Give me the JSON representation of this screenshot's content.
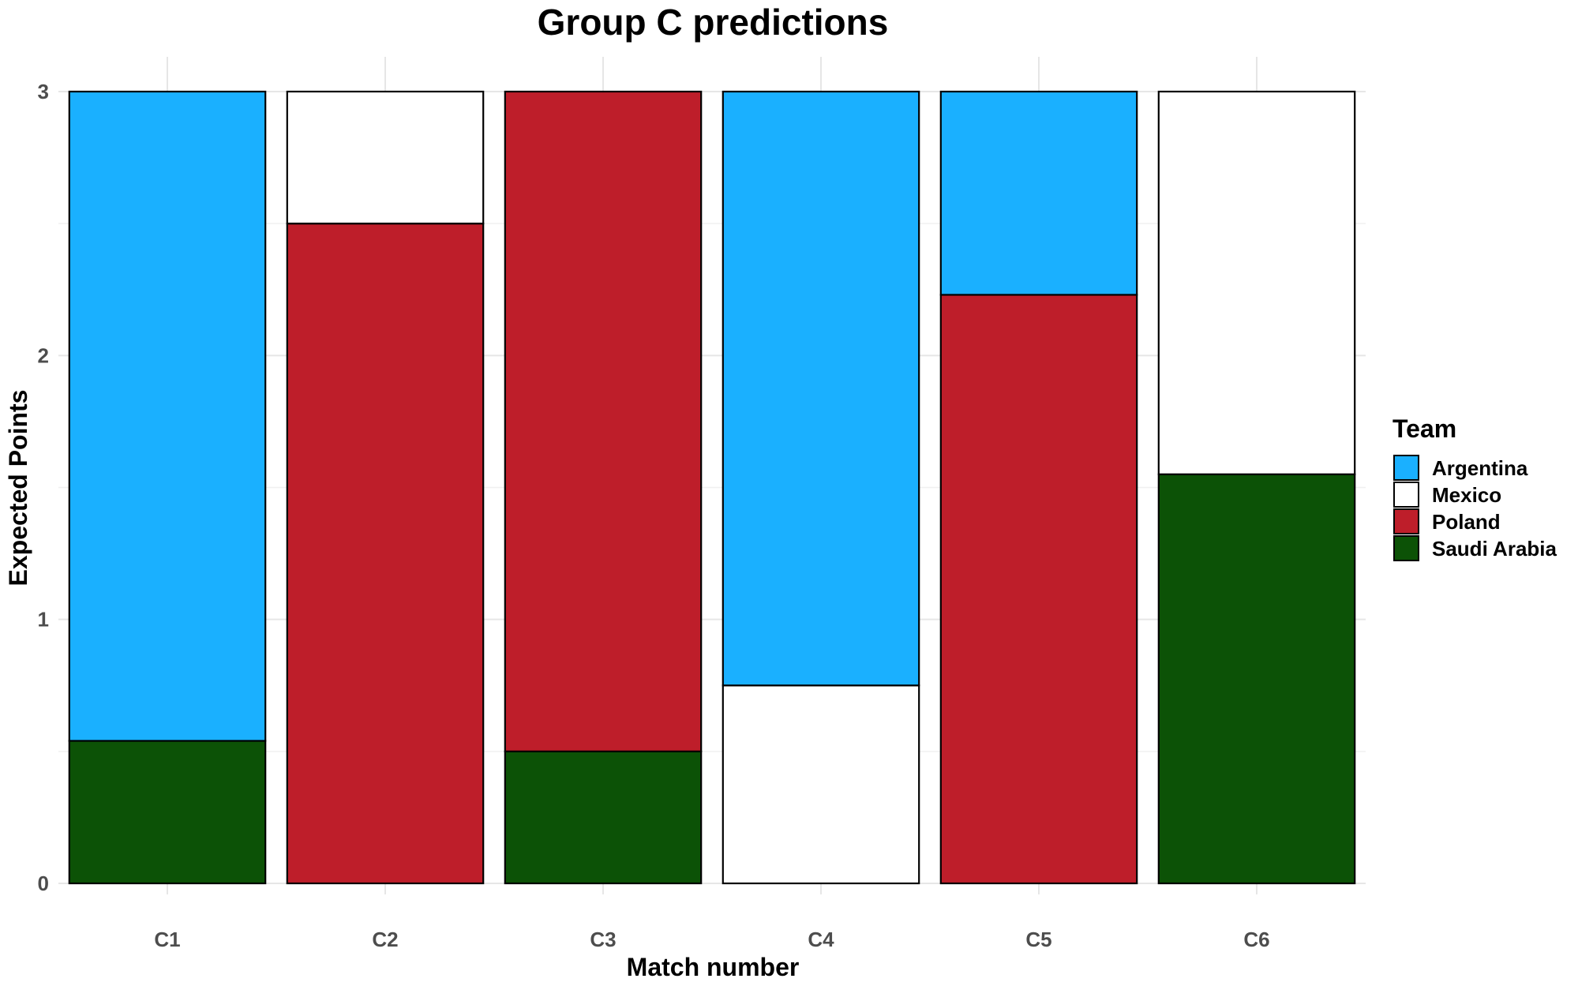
{
  "chart_data": {
    "type": "bar",
    "stacked": true,
    "title": "Group C predictions",
    "xlabel": "Match number",
    "ylabel": "Expected Points",
    "categories": [
      "C1",
      "C2",
      "C3",
      "C4",
      "C5",
      "C6"
    ],
    "ylim": [
      0,
      3
    ],
    "yticks": [
      "0",
      "1",
      "2",
      "3"
    ],
    "grid": true,
    "legend": {
      "title": "Team",
      "position": "right",
      "entries": [
        "Argentina",
        "Mexico",
        "Poland",
        "Saudi Arabia"
      ]
    },
    "colors": {
      "Argentina": "#1AB0FF",
      "Mexico": "#FFFFFF",
      "Poland": "#BE1E2A",
      "Saudi Arabia": "#0C5206"
    },
    "stack_order_bottom_to_top": [
      "Saudi Arabia",
      "Poland",
      "Mexico",
      "Argentina"
    ],
    "series": [
      {
        "name": "Argentina",
        "values": [
          2.46,
          0,
          0,
          2.25,
          0.77,
          0
        ]
      },
      {
        "name": "Mexico",
        "values": [
          0,
          0.5,
          0,
          0.75,
          0,
          1.45
        ]
      },
      {
        "name": "Poland",
        "values": [
          0,
          2.5,
          2.5,
          0,
          2.23,
          0
        ]
      },
      {
        "name": "Saudi Arabia",
        "values": [
          0.54,
          0,
          0.5,
          0,
          0,
          1.55
        ]
      }
    ]
  }
}
